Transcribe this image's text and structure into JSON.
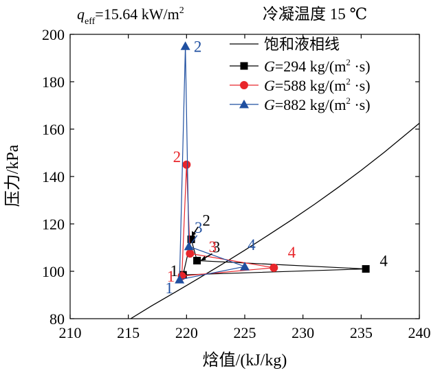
{
  "chart_data": {
    "type": "line",
    "annotation": {
      "q_symbol": "q",
      "q_sub": "eff",
      "q_value": "=15.64 kW/m",
      "q_sup": "2"
    },
    "title": "冷凝温度 15 ℃",
    "xlabel": "焓值/(kJ/kg)",
    "ylabel": "压力/kPa",
    "xlim": [
      210,
      240
    ],
    "ylim": [
      80,
      200
    ],
    "xticks": [
      210,
      215,
      220,
      225,
      230,
      235,
      240
    ],
    "yticks": [
      80,
      100,
      120,
      140,
      160,
      180,
      200
    ],
    "saturation_curve": {
      "name": "饱和液相线",
      "x": [
        215.2,
        217.0,
        219.0,
        221.0,
        223.0,
        225.0,
        227.0,
        229.0,
        231.0,
        233.0,
        235.0,
        237.0,
        239.0,
        240.0
      ],
      "y": [
        80.0,
        85.4,
        91.1,
        96.9,
        102.8,
        108.9,
        115.2,
        121.6,
        128.3,
        135.3,
        142.6,
        150.3,
        158.4,
        162.5
      ]
    },
    "series": [
      {
        "name": "G=294 kg/(m² ·s)",
        "g_value": "=294 kg/(m",
        "unit_end": " ·s)",
        "color": "#000000",
        "marker": "square",
        "x": [
          219.7,
          220.4,
          220.9,
          235.4,
          219.7
        ],
        "y": [
          98.5,
          113.5,
          104.5,
          101.0,
          98.5
        ],
        "labels": [
          "1",
          "2",
          "3",
          "4"
        ]
      },
      {
        "name": "G=588 kg/(m² ·s)",
        "g_value": "=588 kg/(m",
        "unit_end": " ·s)",
        "color": "#e8262b",
        "marker": "circle",
        "x": [
          219.6,
          220.0,
          220.3,
          227.5,
          219.6
        ],
        "y": [
          98.0,
          145.0,
          107.5,
          101.5,
          98.0
        ],
        "labels": [
          "1",
          "2",
          "3",
          "4"
        ]
      },
      {
        "name": "G=882 kg/(m² ·s)",
        "g_value": "=882 kg/(m",
        "unit_end": " ·s)",
        "color": "#1f4fa0",
        "marker": "triangle",
        "x": [
          219.4,
          219.9,
          220.2,
          225.0,
          219.4
        ],
        "y": [
          96.5,
          195.0,
          110.5,
          102.0,
          96.5
        ],
        "labels": [
          "1",
          "2",
          "3",
          "4"
        ]
      }
    ],
    "legend": {
      "placement": "top-right",
      "g_symbol": "G",
      "unit_sup": "2"
    }
  }
}
